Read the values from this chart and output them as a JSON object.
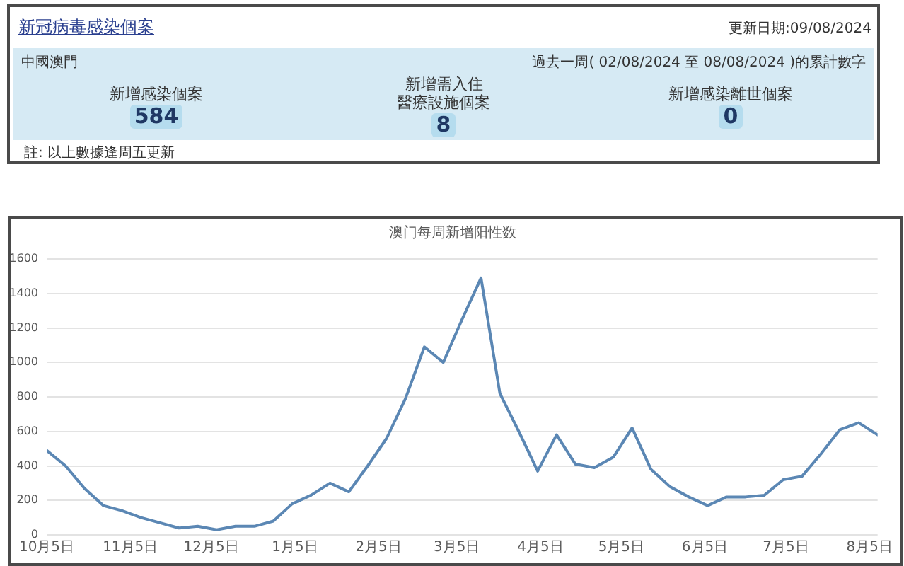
{
  "chart_data": [
    {
      "type": "other",
      "title": "新冠病毒感染個案",
      "categories": [
        "新增感染個案",
        "新增需入住醫療設施個案",
        "新增感染離世個案"
      ],
      "values": [
        584,
        8,
        0
      ],
      "data_labels": true,
      "annotations": [
        "更新日期:09/08/2024",
        "中國澳門",
        "過去一周( 02/08/2024 至 08/08/2024 )的累計數字",
        "註: 以上數據逢周五更新"
      ]
    },
    {
      "type": "line",
      "title": "澳门每周新增阳性数",
      "x": [
        "2023-10-05",
        "2023-10-12",
        "2023-10-19",
        "2023-10-26",
        "2023-11-02",
        "2023-11-09",
        "2023-11-16",
        "2023-11-23",
        "2023-11-30",
        "2023-12-07",
        "2023-12-14",
        "2023-12-21",
        "2023-12-28",
        "2024-01-04",
        "2024-01-11",
        "2024-01-18",
        "2024-01-25",
        "2024-02-01",
        "2024-02-08",
        "2024-02-15",
        "2024-02-22",
        "2024-02-29",
        "2024-03-07",
        "2024-03-14",
        "2024-03-21",
        "2024-03-28",
        "2024-04-04",
        "2024-04-11",
        "2024-04-18",
        "2024-04-25",
        "2024-05-02",
        "2024-05-09",
        "2024-05-16",
        "2024-05-23",
        "2024-05-30",
        "2024-06-06",
        "2024-06-13",
        "2024-06-20",
        "2024-06-27",
        "2024-07-04",
        "2024-07-11",
        "2024-07-18",
        "2024-07-25",
        "2024-08-01",
        "2024-08-08"
      ],
      "values": [
        490,
        400,
        270,
        170,
        140,
        100,
        70,
        40,
        50,
        30,
        50,
        50,
        80,
        180,
        230,
        300,
        250,
        400,
        560,
        790,
        1090,
        1000,
        1250,
        1490,
        820,
        600,
        370,
        580,
        410,
        390,
        450,
        620,
        380,
        280,
        220,
        170,
        220,
        220,
        230,
        320,
        340,
        470,
        610,
        650,
        580
      ],
      "color": "#5b87b4",
      "xlim": [
        "2023-10-05",
        "2024-08-08"
      ],
      "xticks": [
        {
          "value": "2023-10-05",
          "label": "10月5日"
        },
        {
          "value": "2023-11-05",
          "label": "11月5日"
        },
        {
          "value": "2023-12-05",
          "label": "12月5日"
        },
        {
          "value": "2024-01-05",
          "label": "1月5日"
        },
        {
          "value": "2024-02-05",
          "label": "2月5日"
        },
        {
          "value": "2024-03-05",
          "label": "3月5日"
        },
        {
          "value": "2024-04-05",
          "label": "4月5日"
        },
        {
          "value": "2024-05-05",
          "label": "5月5日"
        },
        {
          "value": "2024-06-05",
          "label": "6月5日"
        },
        {
          "value": "2024-07-05",
          "label": "7月5日"
        },
        {
          "value": "2024-08-05",
          "label": "8月5日"
        }
      ],
      "ylim": [
        0,
        1600
      ],
      "yticks": [
        0,
        200,
        400,
        600,
        800,
        1000,
        1200,
        1400,
        1600
      ],
      "grid": "y",
      "legend": false,
      "marker": "none"
    }
  ]
}
